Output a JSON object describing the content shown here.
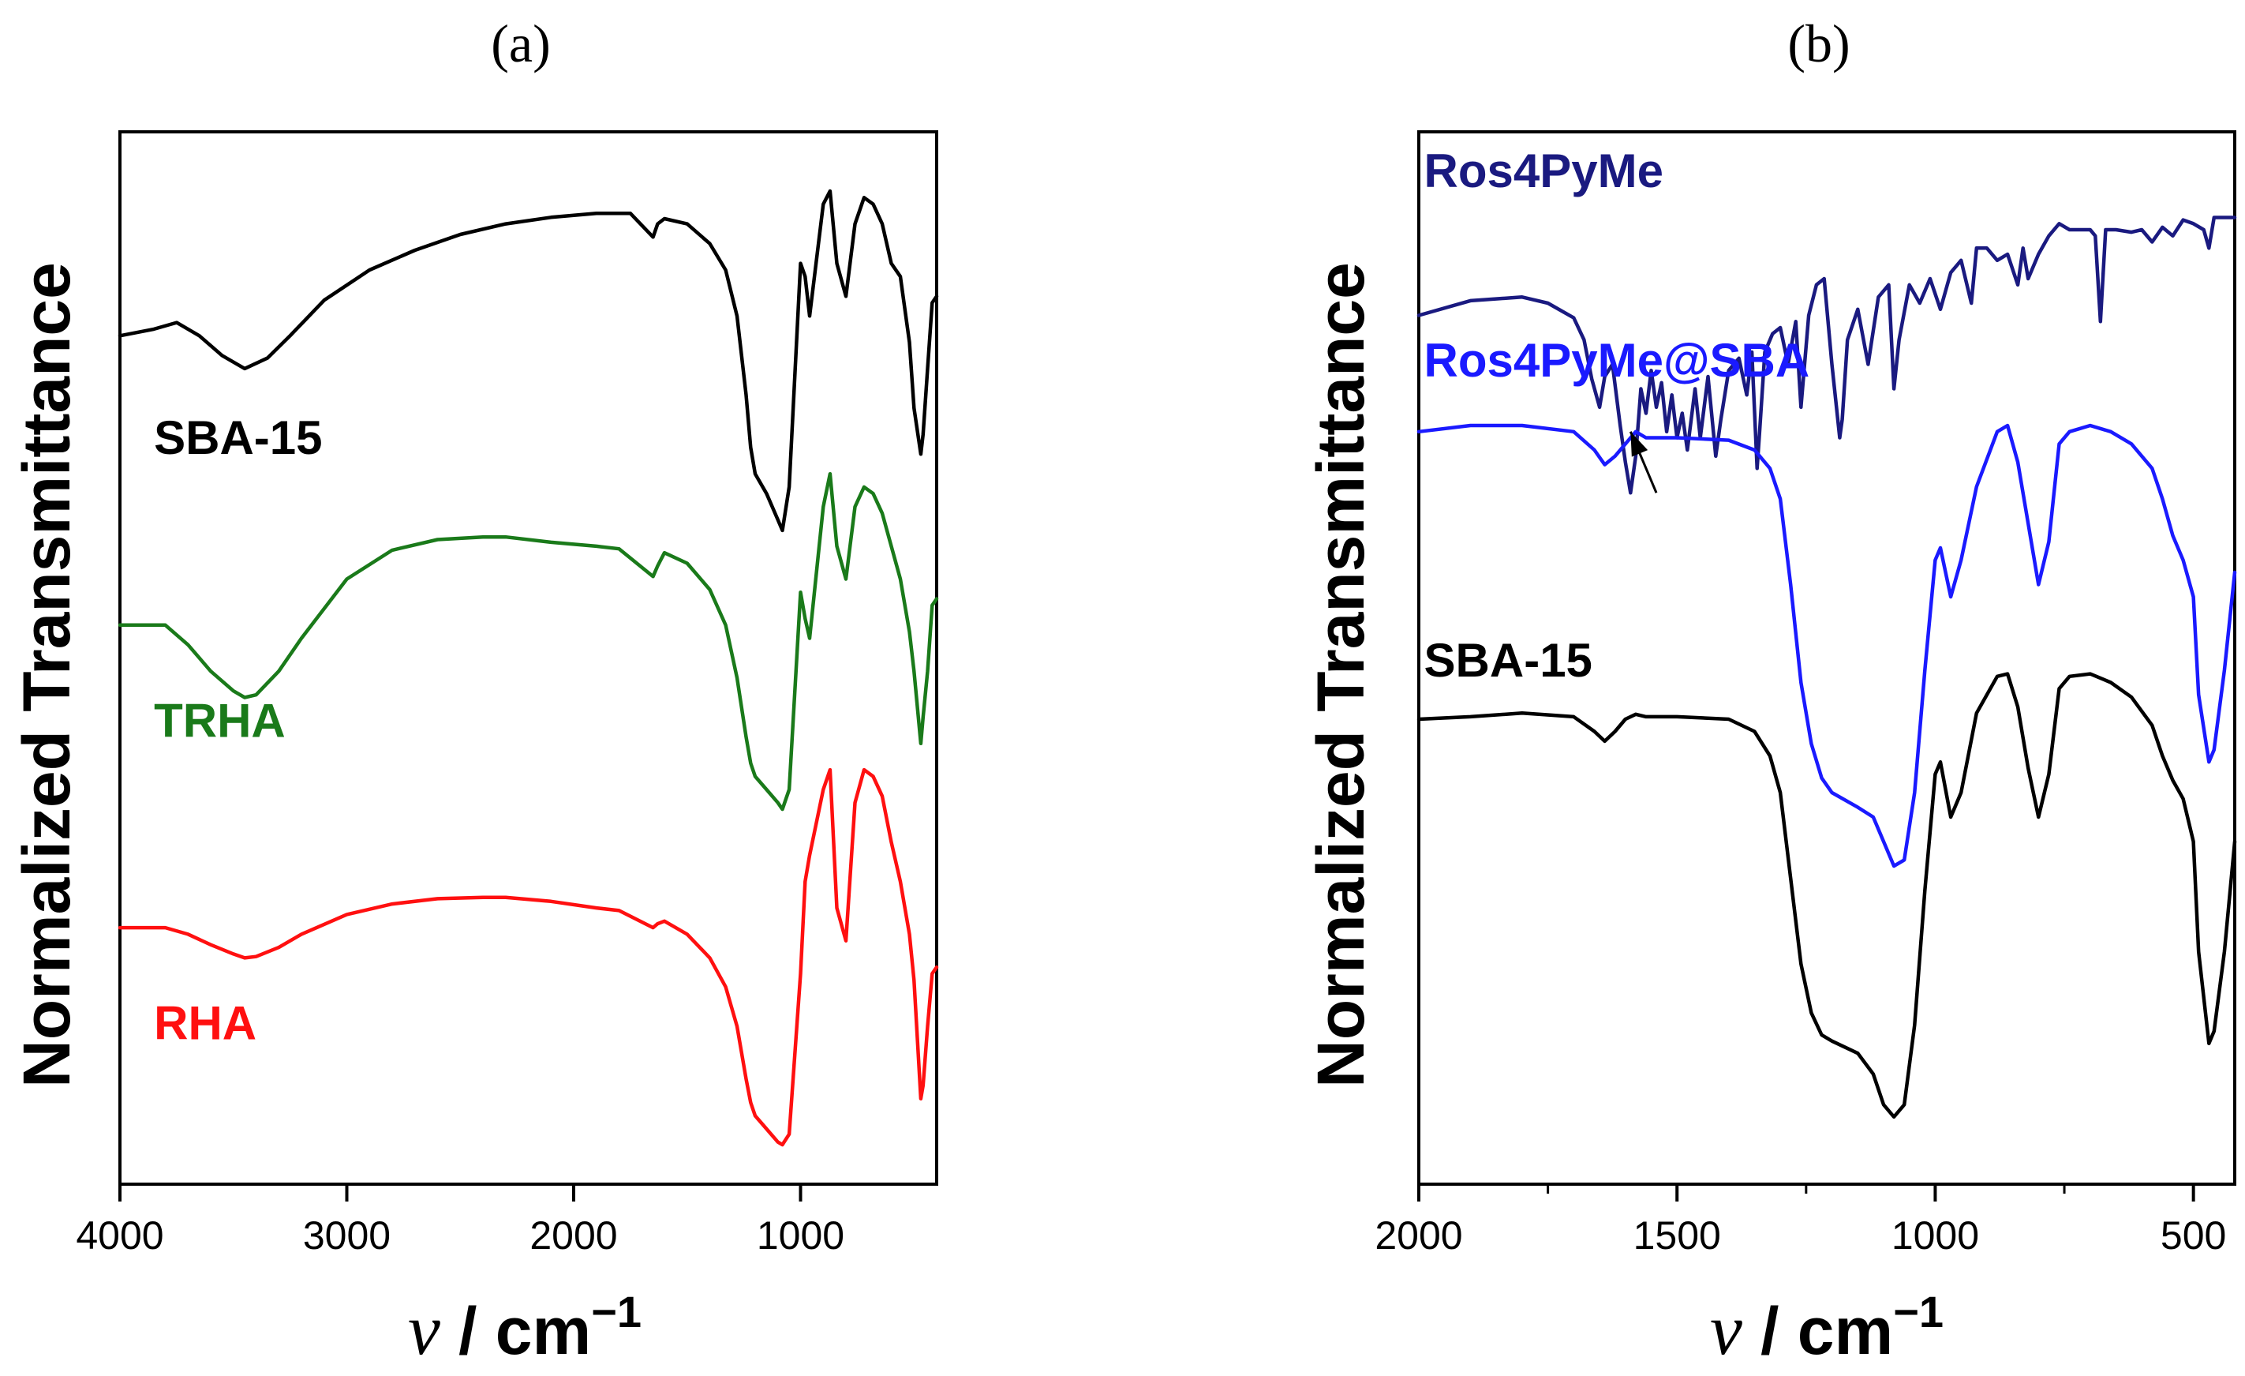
{
  "chart_data": [
    {
      "type": "line",
      "panel_label": "(a)",
      "title": "",
      "ylabel": "Normalized Transmittance",
      "xlabel_symbol": "ν",
      "xlabel_unit": " / cm",
      "xlabel_exp": "−1",
      "xlim": [
        4000,
        400
      ],
      "x_ticks": [
        4000,
        3000,
        2000,
        1000
      ],
      "x_tick_labels": [
        "4000",
        "3000",
        "2000",
        "1000"
      ],
      "y_ticks_shown": false,
      "grid": false,
      "legend": "inline labels",
      "series": [
        {
          "name": "SBA-15",
          "color": "#000000",
          "label_at": [
            3850,
            5.55
          ],
          "x": [
            4000,
            3850,
            3750,
            3650,
            3550,
            3450,
            3350,
            3250,
            3100,
            2900,
            2700,
            2500,
            2300,
            2100,
            1900,
            1750,
            1650,
            1630,
            1600,
            1500,
            1400,
            1330,
            1280,
            1240,
            1220,
            1200,
            1150,
            1100,
            1080,
            1050,
            1000,
            980,
            960,
            900,
            870,
            840,
            800,
            760,
            720,
            680,
            640,
            600,
            560,
            520,
            500,
            470,
            460,
            440,
            420,
            400
          ],
          "y": [
            6.45,
            6.5,
            6.55,
            6.45,
            6.3,
            6.2,
            6.28,
            6.45,
            6.72,
            6.95,
            7.1,
            7.22,
            7.3,
            7.35,
            7.38,
            7.38,
            7.2,
            7.3,
            7.34,
            7.3,
            7.15,
            6.95,
            6.6,
            6.0,
            5.6,
            5.4,
            5.25,
            5.05,
            4.97,
            5.3,
            7.0,
            6.9,
            6.6,
            7.45,
            7.55,
            7.0,
            6.75,
            7.3,
            7.5,
            7.45,
            7.3,
            7.0,
            6.9,
            6.4,
            5.9,
            5.55,
            5.7,
            6.2,
            6.7,
            6.75
          ]
        },
        {
          "name": "TRHA",
          "color": "#1a7a1a",
          "label_at": [
            3850,
            3.4
          ],
          "x": [
            4000,
            3800,
            3700,
            3600,
            3500,
            3450,
            3400,
            3300,
            3200,
            3000,
            2800,
            2600,
            2400,
            2300,
            2100,
            1900,
            1800,
            1650,
            1630,
            1600,
            1500,
            1400,
            1330,
            1280,
            1240,
            1220,
            1200,
            1150,
            1100,
            1080,
            1050,
            1000,
            980,
            960,
            900,
            870,
            840,
            800,
            760,
            720,
            680,
            640,
            600,
            560,
            520,
            500,
            470,
            460,
            440,
            420,
            400
          ],
          "y": [
            4.25,
            4.25,
            4.1,
            3.9,
            3.75,
            3.7,
            3.72,
            3.9,
            4.15,
            4.6,
            4.82,
            4.9,
            4.92,
            4.92,
            4.88,
            4.85,
            4.83,
            4.62,
            4.7,
            4.8,
            4.72,
            4.52,
            4.25,
            3.85,
            3.4,
            3.2,
            3.1,
            3.0,
            2.9,
            2.85,
            3.0,
            4.5,
            4.3,
            4.15,
            5.15,
            5.4,
            4.85,
            4.6,
            5.15,
            5.3,
            5.25,
            5.1,
            4.85,
            4.6,
            4.2,
            3.9,
            3.35,
            3.55,
            3.9,
            4.4,
            4.45
          ]
        },
        {
          "name": "RHA",
          "color": "#ff1010",
          "label_at": [
            3850,
            1.1
          ],
          "x": [
            4000,
            3800,
            3700,
            3600,
            3500,
            3450,
            3400,
            3300,
            3200,
            3000,
            2800,
            2600,
            2400,
            2300,
            2100,
            1900,
            1800,
            1650,
            1630,
            1600,
            1500,
            1400,
            1330,
            1280,
            1240,
            1220,
            1200,
            1150,
            1100,
            1080,
            1050,
            1000,
            980,
            960,
            900,
            870,
            840,
            800,
            760,
            720,
            680,
            640,
            600,
            560,
            520,
            500,
            470,
            460,
            440,
            420,
            400
          ],
          "y": [
            1.95,
            1.95,
            1.9,
            1.82,
            1.75,
            1.72,
            1.73,
            1.8,
            1.9,
            2.05,
            2.13,
            2.17,
            2.18,
            2.18,
            2.15,
            2.1,
            2.08,
            1.95,
            1.98,
            2.0,
            1.9,
            1.72,
            1.5,
            1.2,
            0.8,
            0.62,
            0.52,
            0.42,
            0.32,
            0.3,
            0.38,
            1.6,
            2.3,
            2.5,
            3.0,
            3.15,
            2.1,
            1.85,
            2.9,
            3.15,
            3.1,
            2.95,
            2.6,
            2.3,
            1.9,
            1.55,
            0.65,
            0.75,
            1.2,
            1.6,
            1.65
          ]
        }
      ]
    },
    {
      "type": "line",
      "panel_label": "(b)",
      "title": "",
      "ylabel": "Normalized Transmittance",
      "xlabel_symbol": "ν",
      "xlabel_unit": " / cm",
      "xlabel_exp": "−1",
      "xlim": [
        2000,
        420
      ],
      "x_ticks": [
        2000,
        1500,
        1000,
        500
      ],
      "x_tick_labels": [
        "2000",
        "1500",
        "1000",
        "500"
      ],
      "x_minor_ticks": [
        1750,
        1250,
        750
      ],
      "y_ticks_shown": false,
      "grid": false,
      "legend": "inline labels",
      "annotations": [
        {
          "type": "arrow",
          "from": [
            1540,
            5.05
          ],
          "to": [
            1590,
            5.55
          ]
        }
      ],
      "series": [
        {
          "name": "Ros4PyMe",
          "color": "#1a1a80",
          "label_at": [
            1990,
            7.55
          ],
          "x": [
            2000,
            1900,
            1800,
            1750,
            1700,
            1680,
            1665,
            1650,
            1640,
            1625,
            1610,
            1600,
            1590,
            1580,
            1570,
            1560,
            1550,
            1540,
            1530,
            1520,
            1510,
            1500,
            1490,
            1480,
            1465,
            1455,
            1440,
            1425,
            1415,
            1400,
            1380,
            1365,
            1355,
            1345,
            1340,
            1330,
            1315,
            1300,
            1285,
            1270,
            1260,
            1245,
            1230,
            1215,
            1200,
            1185,
            1180,
            1170,
            1150,
            1130,
            1110,
            1090,
            1080,
            1070,
            1050,
            1030,
            1010,
            990,
            970,
            950,
            930,
            920,
            900,
            880,
            860,
            840,
            830,
            820,
            800,
            780,
            760,
            740,
            720,
            700,
            690,
            680,
            670,
            650,
            620,
            600,
            580,
            560,
            540,
            520,
            500,
            480,
            470,
            460,
            440,
            420
          ],
          "y": [
            6.5,
            6.62,
            6.65,
            6.6,
            6.48,
            6.3,
            5.98,
            5.75,
            6.0,
            6.1,
            5.6,
            5.3,
            5.05,
            5.35,
            5.9,
            5.7,
            6.05,
            5.75,
            5.95,
            5.55,
            5.85,
            5.5,
            5.7,
            5.4,
            5.9,
            5.5,
            6.0,
            5.35,
            5.65,
            6.05,
            6.15,
            5.85,
            6.2,
            5.25,
            5.55,
            6.2,
            6.35,
            6.4,
            6.1,
            6.45,
            5.75,
            6.5,
            6.75,
            6.8,
            6.1,
            5.5,
            5.65,
            6.3,
            6.55,
            6.1,
            6.65,
            6.75,
            5.9,
            6.3,
            6.75,
            6.6,
            6.8,
            6.55,
            6.85,
            6.95,
            6.6,
            7.05,
            7.05,
            6.95,
            7.0,
            6.75,
            7.05,
            6.8,
            7.0,
            7.15,
            7.25,
            7.2,
            7.2,
            7.2,
            7.15,
            6.45,
            7.2,
            7.2,
            7.18,
            7.2,
            7.1,
            7.22,
            7.15,
            7.28,
            7.25,
            7.2,
            7.05,
            7.3,
            7.3,
            7.3
          ]
        },
        {
          "name": "Ros4PyMe@SBA",
          "color": "#1a1aff",
          "label_at": [
            1990,
            6.0
          ],
          "x": [
            2000,
            1900,
            1800,
            1700,
            1660,
            1640,
            1620,
            1600,
            1580,
            1560,
            1500,
            1400,
            1350,
            1320,
            1300,
            1280,
            1260,
            1240,
            1220,
            1200,
            1150,
            1120,
            1100,
            1080,
            1060,
            1040,
            1020,
            1000,
            990,
            970,
            950,
            920,
            880,
            860,
            840,
            820,
            800,
            780,
            760,
            740,
            700,
            660,
            620,
            580,
            560,
            540,
            520,
            500,
            490,
            470,
            460,
            440,
            420
          ],
          "y": [
            5.55,
            5.6,
            5.6,
            5.55,
            5.4,
            5.28,
            5.35,
            5.45,
            5.55,
            5.5,
            5.5,
            5.48,
            5.4,
            5.25,
            5.0,
            4.3,
            3.5,
            3.0,
            2.72,
            2.6,
            2.48,
            2.4,
            2.2,
            2.0,
            2.05,
            2.6,
            3.6,
            4.5,
            4.6,
            4.2,
            4.5,
            5.1,
            5.55,
            5.6,
            5.3,
            4.8,
            4.3,
            4.65,
            5.45,
            5.55,
            5.6,
            5.55,
            5.45,
            5.25,
            5.0,
            4.7,
            4.5,
            4.2,
            3.4,
            2.85,
            2.95,
            3.6,
            4.4
          ]
        },
        {
          "name": "SBA-15",
          "color": "#000000",
          "label_at": [
            1990,
            3.55
          ],
          "x": [
            2000,
            1900,
            1800,
            1700,
            1660,
            1640,
            1620,
            1600,
            1580,
            1560,
            1500,
            1400,
            1350,
            1320,
            1300,
            1280,
            1260,
            1240,
            1220,
            1200,
            1150,
            1120,
            1100,
            1080,
            1060,
            1040,
            1020,
            1000,
            990,
            970,
            950,
            920,
            880,
            860,
            840,
            820,
            800,
            780,
            760,
            740,
            700,
            660,
            620,
            580,
            560,
            540,
            520,
            500,
            490,
            470,
            460,
            440,
            420
          ],
          "y": [
            3.2,
            3.22,
            3.25,
            3.22,
            3.1,
            3.02,
            3.1,
            3.2,
            3.24,
            3.22,
            3.22,
            3.2,
            3.1,
            2.9,
            2.6,
            1.9,
            1.2,
            0.8,
            0.62,
            0.57,
            0.47,
            0.3,
            0.05,
            -0.05,
            0.05,
            0.7,
            1.8,
            2.75,
            2.85,
            2.4,
            2.6,
            3.25,
            3.55,
            3.57,
            3.3,
            2.8,
            2.4,
            2.75,
            3.45,
            3.55,
            3.57,
            3.5,
            3.38,
            3.15,
            2.9,
            2.7,
            2.55,
            2.2,
            1.3,
            0.55,
            0.65,
            1.3,
            2.2
          ]
        }
      ]
    }
  ]
}
